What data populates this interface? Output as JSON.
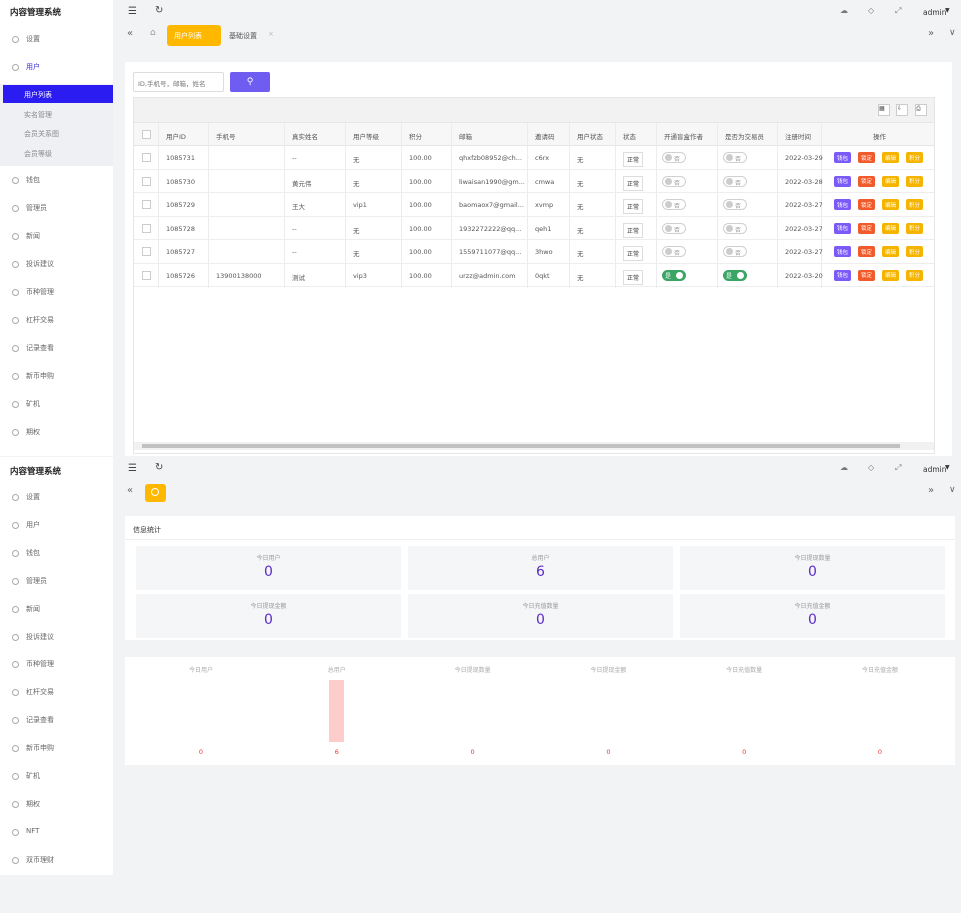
{
  "screens": [
    {
      "brand": "内容管理系统",
      "user": "admin",
      "tabs": [
        "用户列表",
        "基础设置"
      ],
      "menu": [
        "设置",
        "用户",
        "钱包",
        "管理员",
        "新闻",
        "投诉建议",
        "币种管理",
        "杠杆交易",
        "记录查看",
        "新币申购",
        "矿机",
        "期权"
      ],
      "submenu": [
        "用户列表",
        "实名管理",
        "会员关系图",
        "会员等级"
      ],
      "search_placeholder": "ID,手机号，邮箱，姓名",
      "table": {
        "columns": [
          "用户ID",
          "手机号",
          "真实姓名",
          "用户等级",
          "积分",
          "邮箱",
          "邀请码",
          "用户状态",
          "状态",
          "开通盲盒作者",
          "是否为交易员",
          "注册时间",
          "操作"
        ],
        "rows": [
          [
            1085731,
            null,
            "--",
            "无",
            "100.00",
            "qhxfzb08952@ch...",
            "c6rx",
            "无",
            "正常",
            "否",
            "否",
            "2022-03-29"
          ],
          [
            1085730,
            null,
            "黄元伟",
            "无",
            "100.00",
            "liwaisan1990@gm...",
            "cmwa",
            "无",
            "正常",
            "否",
            "否",
            "2022-03-28"
          ],
          [
            1085729,
            null,
            "王大",
            "vip1",
            "100.00",
            "baomaox7@gmail...",
            "xvmp",
            "无",
            "正常",
            "否",
            "否",
            "2022-03-27"
          ],
          [
            1085728,
            null,
            "--",
            "无",
            "100.00",
            "1932272222@qq...",
            "qeh1",
            "无",
            "正常",
            "否",
            "否",
            "2022-03-27"
          ],
          [
            1085727,
            null,
            "--",
            "无",
            "100.00",
            "1559711077@qq...",
            "3hwo",
            "无",
            "正常",
            "否",
            "否",
            "2022-03-27"
          ],
          [
            1085726,
            13900138000,
            "测试",
            "vip3",
            "100.00",
            "urzz@admin.com",
            "0qkt",
            "无",
            "正常",
            "是",
            "是",
            "2022-03-20"
          ]
        ],
        "actions": [
          "钱包",
          "锁定",
          "编辑",
          "积分"
        ]
      }
    },
    {
      "brand": "内容管理系统",
      "user": "admin",
      "menu": [
        "设置",
        "用户",
        "钱包",
        "管理员",
        "新闻",
        "投诉建议",
        "币种管理",
        "杠杆交易",
        "记录查看",
        "新币申购",
        "矿机",
        "期权",
        "NFT",
        "双币理财"
      ],
      "panel_title": "信息统计",
      "stats": [
        {
          "label": "今日用户",
          "value": 0
        },
        {
          "label": "总用户",
          "value": 6
        },
        {
          "label": "今日提现数量",
          "value": 0
        },
        {
          "label": "今日提现金额",
          "value": 0
        },
        {
          "label": "今日充值数量",
          "value": 0
        },
        {
          "label": "今日充值金额",
          "value": 0
        }
      ]
    }
  ],
  "chart_data": {
    "type": "bar",
    "categories": [
      "今日用户",
      "总用户",
      "今日提现数量",
      "今日提现金额",
      "今日充值数量",
      "今日充值金额"
    ],
    "values": [
      0,
      6,
      0,
      0,
      0,
      0
    ],
    "color": "#ffcccc"
  }
}
